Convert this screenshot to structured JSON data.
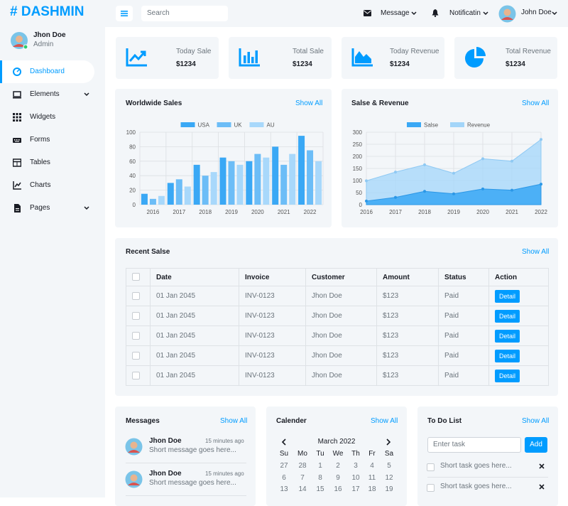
{
  "brand": "# DASHMIN",
  "search_placeholder": "Search",
  "topbar": {
    "message": "Message",
    "notification": "Notificatin",
    "user": "John Doe"
  },
  "sidebar": {
    "user_name": "Jhon Doe",
    "user_role": "Admin",
    "menu": [
      "Dashboard",
      "Elements",
      "Widgets",
      "Forms",
      "Tables",
      "Charts",
      "Pages"
    ]
  },
  "stats": [
    {
      "label": "Today Sale",
      "value": "$1234"
    },
    {
      "label": "Total Sale",
      "value": "$1234"
    },
    {
      "label": "Today Revenue",
      "value": "$1234"
    },
    {
      "label": "Total Revenue",
      "value": "$1234"
    }
  ],
  "chart_data": [
    {
      "type": "bar",
      "title": "Worldwide Sales",
      "link": "Show All",
      "categories": [
        "2016",
        "2017",
        "2018",
        "2019",
        "2020",
        "2021",
        "2022"
      ],
      "series": [
        {
          "name": "USA",
          "color": "#3aa8f5",
          "values": [
            15,
            30,
            55,
            65,
            60,
            80,
            95
          ]
        },
        {
          "name": "UK",
          "color": "#6cbdf7",
          "values": [
            8,
            35,
            40,
            60,
            70,
            55,
            75
          ]
        },
        {
          "name": "AU",
          "color": "#a8d8fb",
          "values": [
            12,
            25,
            45,
            55,
            65,
            70,
            60
          ]
        }
      ],
      "ylim": [
        0,
        100
      ],
      "yticks": [
        0,
        20,
        40,
        60,
        80,
        100
      ],
      "grid": true,
      "legend": "top"
    },
    {
      "type": "area",
      "title": "Salse & Revenue",
      "link": "Show All",
      "categories": [
        "2016",
        "2017",
        "2018",
        "2019",
        "2020",
        "2021",
        "2022"
      ],
      "series": [
        {
          "name": "Salse",
          "color": "#3aa8f5",
          "values": [
            15,
            30,
            55,
            45,
            65,
            60,
            85
          ]
        },
        {
          "name": "Revenue",
          "color": "#a3d5f9",
          "values": [
            99,
            135,
            165,
            130,
            190,
            180,
            270
          ]
        }
      ],
      "ylim": [
        0,
        300
      ],
      "yticks": [
        0,
        50,
        100,
        150,
        200,
        250,
        300
      ],
      "grid": true,
      "legend": "top"
    }
  ],
  "recent_sales": {
    "title": "Recent Salse",
    "link": "Show All",
    "columns": [
      "Date",
      "Invoice",
      "Customer",
      "Amount",
      "Status",
      "Action"
    ],
    "rows": [
      [
        "01 Jan 2045",
        "INV-0123",
        "Jhon Doe",
        "$123",
        "Paid"
      ],
      [
        "01 Jan 2045",
        "INV-0123",
        "Jhon Doe",
        "$123",
        "Paid"
      ],
      [
        "01 Jan 2045",
        "INV-0123",
        "Jhon Doe",
        "$123",
        "Paid"
      ],
      [
        "01 Jan 2045",
        "INV-0123",
        "Jhon Doe",
        "$123",
        "Paid"
      ],
      [
        "01 Jan 2045",
        "INV-0123",
        "Jhon Doe",
        "$123",
        "Paid"
      ]
    ],
    "action": "Detail"
  },
  "messages": {
    "title": "Messages",
    "link": "Show All",
    "items": [
      {
        "name": "Jhon Doe",
        "time": "15 minutes ago",
        "text": "Short message goes here..."
      },
      {
        "name": "Jhon Doe",
        "time": "15 minutes ago",
        "text": "Short message goes here..."
      }
    ]
  },
  "calendar": {
    "title": "Calender",
    "link": "Show All",
    "month": "March 2022",
    "weekdays": [
      "Su",
      "Mo",
      "Tu",
      "We",
      "Th",
      "Fr",
      "Sa"
    ],
    "weeks": [
      [
        27,
        28,
        1,
        2,
        3,
        4,
        5
      ],
      [
        6,
        7,
        8,
        9,
        10,
        11,
        12
      ],
      [
        13,
        14,
        15,
        16,
        17,
        18,
        19
      ]
    ]
  },
  "todo": {
    "title": "To Do List",
    "link": "Show All",
    "placeholder": "Enter task",
    "button": "Add",
    "tasks": [
      "Short task goes here...",
      "Short task goes here..."
    ]
  }
}
